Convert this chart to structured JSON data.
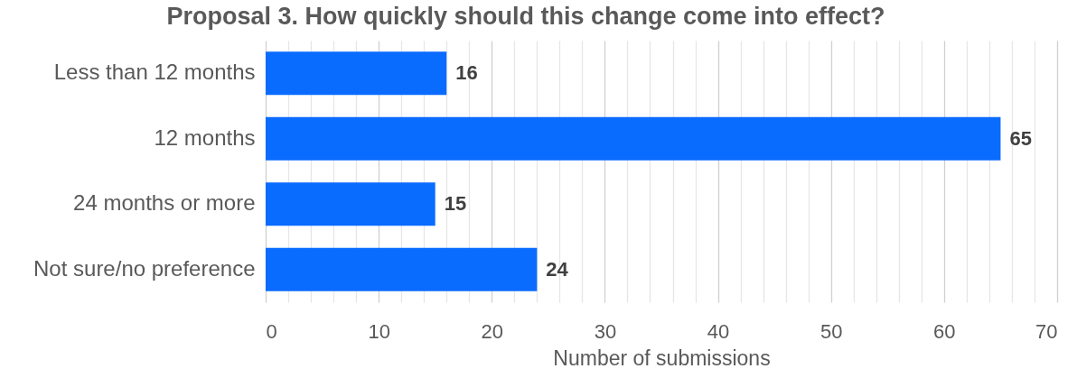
{
  "chart_data": {
    "type": "bar",
    "orientation": "horizontal",
    "title": "Proposal 3. How quickly should this change come into effect?",
    "xlabel": "Number of submissions",
    "categories": [
      "Less than 12 months",
      "12 months",
      "24 months or more",
      "Not sure/no preference"
    ],
    "values": [
      16,
      65,
      15,
      24
    ],
    "color": "#0a6bff",
    "xlim": [
      0,
      70
    ],
    "xticks": [
      0,
      {
        "value": 2,
        "label": null
      },
      {
        "value": 4,
        "label": null
      },
      {
        "value": 6,
        "label": null
      },
      {
        "value": 8,
        "label": null
      },
      10,
      {
        "value": 12,
        "label": null
      },
      {
        "value": 14,
        "label": null
      },
      {
        "value": 16,
        "label": null
      },
      {
        "value": 18,
        "label": null
      },
      20,
      {
        "value": 22,
        "label": null
      },
      {
        "value": 24,
        "label": null
      },
      {
        "value": 26,
        "label": null
      },
      {
        "value": 28,
        "label": null
      },
      30,
      {
        "value": 32,
        "label": null
      },
      {
        "value": 34,
        "label": null
      },
      {
        "value": 36,
        "label": null
      },
      {
        "value": 38,
        "label": null
      },
      40,
      {
        "value": 42,
        "label": null
      },
      {
        "value": 44,
        "label": null
      },
      {
        "value": 46,
        "label": null
      },
      {
        "value": 48,
        "label": null
      },
      50,
      {
        "value": 52,
        "label": null
      },
      {
        "value": 54,
        "label": null
      },
      {
        "value": 56,
        "label": null
      },
      {
        "value": 58,
        "label": null
      },
      60,
      {
        "value": 62,
        "label": null
      },
      {
        "value": 64,
        "label": null
      },
      {
        "value": 66,
        "label": null
      },
      {
        "value": 68,
        "label": null
      },
      70
    ],
    "grid": "x",
    "data_labels": true
  }
}
